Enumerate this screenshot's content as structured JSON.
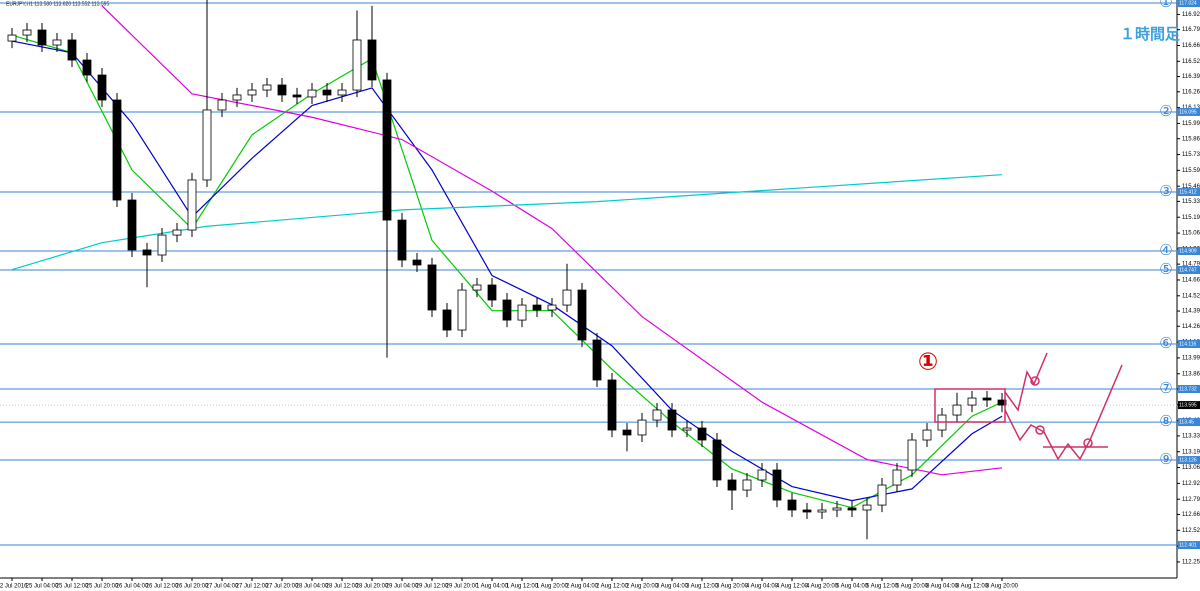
{
  "chart_data": {
    "type": "candlestick",
    "header": "EURJPY,H1  113.580 113.620 113.552 113.595",
    "annotations": [
      "１時間足",
      "①"
    ],
    "categories": [
      "22 Jul 2016",
      null,
      "25 Jul 04:00",
      null,
      "25 Jul 12:00",
      null,
      "25 Jul 20:00",
      null,
      "26 Jul 04:00",
      null,
      "26 Jul 12:00",
      null,
      "26 Jul 20:00",
      null,
      "27 Jul 04:00",
      null,
      "27 Jul 12:00",
      null,
      "27 Jul 20:00",
      null,
      "28 Jul 04:00",
      null,
      "28 Jul 12:00",
      null,
      "28 Jul 20:00",
      null,
      "29 Jul 04:00",
      null,
      "29 Jul 12:00",
      null,
      "29 Jul 20:00",
      null,
      "1 Aug 04:00",
      null,
      "1 Aug 12:00",
      null,
      "1 Aug 20:00",
      null,
      "2 Aug 04:00",
      null,
      "2 Aug 12:00",
      null,
      "2 Aug 20:00",
      null,
      "3 Aug 04:00",
      null,
      "3 Aug 12:00",
      null,
      "3 Aug 20:00",
      null,
      "4 Aug 04:00",
      null,
      "4 Aug 12:00",
      null,
      "4 Aug 20:00",
      null,
      "5 Aug 04:00",
      null,
      "5 Aug 12:00",
      null,
      "5 Aug 20:00",
      null,
      "8 Aug 04:00",
      null,
      "8 Aug 12:00",
      null,
      "8 Aug 20:00"
    ],
    "open": [
      116.7,
      116.751,
      116.794,
      116.666,
      116.709,
      116.538,
      116.41,
      116.197,
      115.344,
      114.918,
      114.875,
      115.045,
      115.088,
      115.515,
      116.112,
      116.197,
      116.24,
      116.282,
      116.325,
      116.24,
      116.223,
      116.282,
      116.24,
      116.282,
      116.709,
      116.368,
      115.173,
      114.832,
      114.79,
      114.406,
      114.235,
      114.576,
      114.619,
      114.491,
      114.32,
      114.448,
      114.406,
      114.448,
      114.576,
      114.15,
      113.809,
      113.382,
      113.34,
      113.467,
      113.553,
      113.382,
      113.399,
      113.297,
      112.956,
      112.87,
      112.956,
      113.041,
      112.785,
      112.7,
      112.683,
      112.7,
      112.717,
      112.7,
      112.742,
      112.913,
      113.041,
      113.297,
      113.382,
      113.51,
      113.595,
      113.655,
      113.638
    ],
    "high": [
      116.811,
      116.854,
      116.854,
      116.769,
      116.769,
      116.598,
      116.47,
      116.257,
      115.404,
      114.978,
      115.105,
      115.148,
      115.575,
      117.05,
      116.257,
      116.3,
      116.342,
      116.385,
      116.385,
      116.3,
      116.342,
      116.342,
      116.342,
      116.96,
      117.0,
      116.428,
      115.233,
      114.892,
      114.85,
      114.466,
      114.636,
      114.679,
      114.679,
      114.551,
      114.508,
      114.508,
      114.508,
      114.8,
      114.636,
      114.21,
      113.869,
      113.442,
      113.527,
      113.613,
      113.613,
      113.459,
      113.459,
      113.357,
      113.016,
      113.016,
      113.101,
      113.101,
      112.845,
      112.76,
      112.76,
      112.777,
      112.777,
      112.802,
      112.973,
      113.101,
      113.357,
      113.442,
      113.57,
      113.7,
      113.715,
      113.715,
      113.698
    ],
    "low": [
      116.64,
      116.691,
      116.606,
      116.606,
      116.478,
      116.35,
      116.137,
      115.284,
      114.858,
      114.6,
      114.815,
      114.985,
      115.028,
      115.455,
      116.052,
      116.137,
      116.18,
      116.222,
      116.18,
      116.163,
      116.163,
      116.18,
      116.18,
      116.222,
      116.308,
      114.0,
      114.772,
      114.73,
      114.346,
      114.175,
      114.175,
      114.516,
      114.431,
      114.26,
      114.26,
      114.346,
      114.346,
      114.388,
      114.09,
      113.749,
      113.322,
      113.2,
      113.28,
      113.407,
      113.322,
      113.322,
      113.237,
      112.896,
      112.7,
      112.81,
      112.896,
      112.725,
      112.64,
      112.623,
      112.623,
      112.64,
      112.64,
      112.45,
      112.682,
      112.853,
      112.981,
      113.237,
      113.322,
      113.45,
      113.535,
      113.578,
      113.535
    ],
    "close": [
      116.751,
      116.794,
      116.666,
      116.709,
      116.538,
      116.41,
      116.197,
      115.344,
      114.918,
      114.875,
      115.045,
      115.088,
      115.515,
      116.112,
      116.197,
      116.24,
      116.282,
      116.325,
      116.24,
      116.223,
      116.282,
      116.24,
      116.282,
      116.709,
      116.368,
      115.173,
      114.832,
      114.79,
      114.406,
      114.235,
      114.576,
      114.619,
      114.491,
      114.32,
      114.448,
      114.406,
      114.448,
      114.576,
      114.15,
      113.809,
      113.382,
      113.34,
      113.467,
      113.553,
      113.382,
      113.399,
      113.297,
      112.956,
      112.87,
      112.956,
      113.041,
      112.785,
      112.7,
      112.683,
      112.7,
      112.717,
      112.7,
      112.742,
      112.913,
      113.041,
      113.297,
      113.382,
      113.51,
      113.595,
      113.655,
      113.638,
      113.595
    ],
    "lines": [
      {
        "color": "#00cc00",
        "x": [
          0,
          4,
          8,
          12,
          16,
          20,
          24,
          28,
          32,
          36,
          40,
          44,
          48,
          52,
          56,
          60,
          64,
          66
        ],
        "values": [
          116.75,
          116.6,
          115.6,
          115.1,
          115.9,
          116.25,
          116.55,
          115.0,
          114.4,
          114.4,
          113.9,
          113.45,
          113.05,
          112.85,
          112.72,
          113.0,
          113.5,
          113.62
        ]
      },
      {
        "color": "#0000cc",
        "x": [
          0,
          4,
          8,
          12,
          16,
          20,
          24,
          28,
          32,
          36,
          40,
          44,
          48,
          52,
          56,
          60,
          64,
          66
        ],
        "values": [
          116.7,
          116.6,
          116.0,
          115.2,
          115.7,
          116.15,
          116.3,
          115.6,
          114.7,
          114.45,
          114.1,
          113.55,
          113.2,
          112.9,
          112.78,
          112.88,
          113.35,
          113.5
        ]
      },
      {
        "color": "#e000e0",
        "x": [
          6,
          12,
          20,
          26,
          32,
          36,
          42,
          50,
          57,
          62,
          66
        ],
        "values": [
          117.0,
          116.25,
          116.05,
          115.86,
          115.42,
          115.1,
          114.35,
          113.62,
          113.13,
          113.0,
          113.06
        ]
      },
      {
        "color": "#00cccc",
        "x": [
          0,
          6,
          13,
          26,
          39,
          53,
          66
        ],
        "values": [
          114.75,
          114.98,
          115.12,
          115.26,
          115.33,
          115.45,
          115.56
        ]
      }
    ],
    "levels": [
      {
        "value": 117.024,
        "label": "①"
      },
      {
        "value": 116.095,
        "label": "②"
      },
      {
        "value": 115.412,
        "label": "③"
      },
      {
        "value": 114.909,
        "label": "④"
      },
      {
        "value": 114.747,
        "label": "⑤"
      },
      {
        "value": 114.116,
        "label": "⑥"
      },
      {
        "value": 113.732,
        "label": "⑦"
      },
      {
        "value": 113.45,
        "label": "⑧"
      },
      {
        "value": 113.126,
        "label": "⑨"
      },
      {
        "value": 112.401,
        "label": null
      }
    ],
    "current_price": 113.595,
    "ylim": [
      112.12,
      117.05
    ],
    "yticks": [
      112.257,
      112.392,
      112.527,
      112.662,
      112.792,
      112.927,
      113.062,
      113.197,
      113.332,
      113.462,
      113.597,
      113.732,
      113.862,
      113.997,
      114.132,
      114.267,
      114.397,
      114.527,
      114.662,
      114.797,
      114.927,
      115.062,
      115.197,
      115.332,
      115.462,
      115.597,
      115.732,
      115.867,
      115.997,
      116.132,
      116.267,
      116.397,
      116.527,
      116.662,
      116.797,
      116.927
    ]
  }
}
